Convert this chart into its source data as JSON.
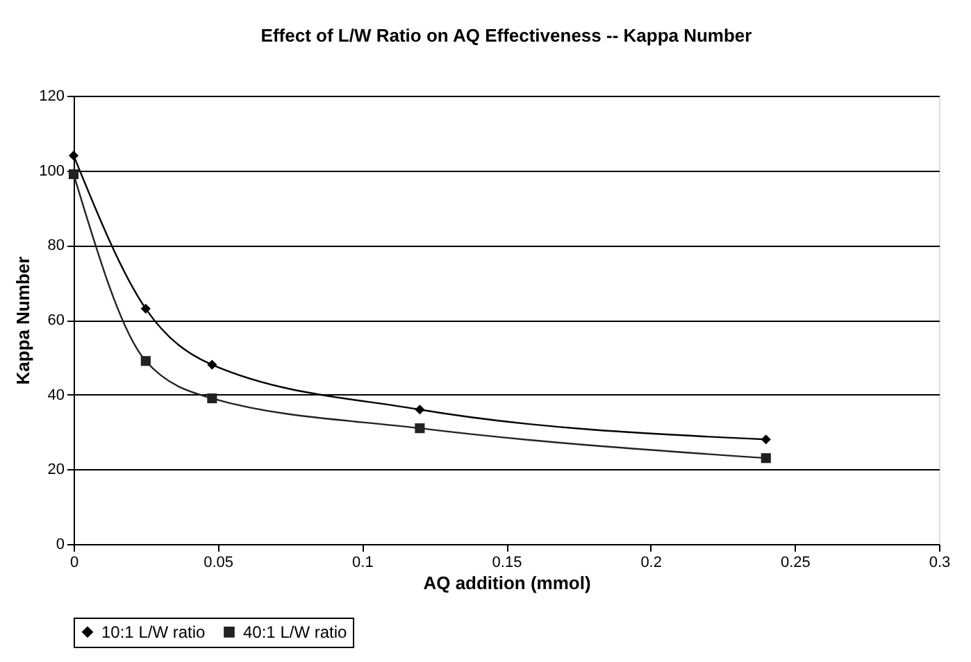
{
  "chart_data": {
    "type": "line",
    "title": "Effect of L/W Ratio on AQ Effectiveness -- Kappa Number",
    "xlabel": "AQ addition (mmol)",
    "ylabel": "Kappa Number",
    "x": [
      0,
      0.025,
      0.048,
      0.12,
      0.24
    ],
    "series": [
      {
        "name": "10:1 L/W ratio",
        "color": "#000000",
        "marker": "diamond",
        "values": [
          104,
          63,
          48,
          36,
          28
        ]
      },
      {
        "name": "40:1 L/W ratio",
        "color": "#222222",
        "marker": "square",
        "values": [
          99,
          49,
          39,
          31,
          23
        ]
      }
    ],
    "xlim": [
      0,
      0.3
    ],
    "xticks": [
      0,
      0.05,
      0.1,
      0.15,
      0.2,
      0.25,
      0.3
    ],
    "ylim": [
      0,
      120
    ],
    "yticks": [
      0,
      20,
      40,
      60,
      80,
      100,
      120
    ],
    "grid": "y",
    "legend": "bottom",
    "line_style": "solid"
  }
}
